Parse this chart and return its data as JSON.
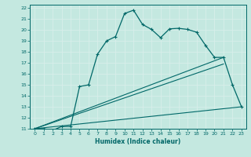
{
  "xlabel": "Humidex (Indice chaleur)",
  "bg_color": "#c4e8e0",
  "grid_color": "#d8eeea",
  "line_color": "#006868",
  "xlim": [
    -0.5,
    23.5
  ],
  "ylim": [
    11,
    22.3
  ],
  "xtick_labels": [
    "0",
    "1",
    "2",
    "3",
    "4",
    "5",
    "6",
    "7",
    "8",
    "9",
    "10",
    "11",
    "12",
    "13",
    "14",
    "15",
    "16",
    "17",
    "18",
    "19",
    "20",
    "21",
    "22",
    "23"
  ],
  "ytick_labels": [
    "11",
    "12",
    "13",
    "14",
    "15",
    "16",
    "17",
    "18",
    "19",
    "20",
    "21",
    "22"
  ],
  "xticks": [
    0,
    1,
    2,
    3,
    4,
    5,
    6,
    7,
    8,
    9,
    10,
    11,
    12,
    13,
    14,
    15,
    16,
    17,
    18,
    19,
    20,
    21,
    22,
    23
  ],
  "yticks": [
    11,
    12,
    13,
    14,
    15,
    16,
    17,
    18,
    19,
    20,
    21,
    22
  ],
  "main_line": {
    "x": [
      0,
      1,
      2,
      3,
      4,
      5,
      6,
      7,
      8,
      9,
      10,
      11,
      12,
      13,
      14,
      15,
      16,
      17,
      18,
      19,
      20,
      21,
      22,
      23
    ],
    "y": [
      11,
      11,
      10.85,
      11.2,
      11.2,
      14.85,
      15.0,
      17.8,
      19.0,
      19.4,
      21.5,
      21.8,
      20.5,
      20.05,
      19.3,
      20.1,
      20.15,
      20.05,
      19.8,
      18.6,
      17.5,
      17.5,
      15.0,
      13.0
    ]
  },
  "fan_lines": [
    {
      "x": [
        0,
        21
      ],
      "y": [
        11,
        17.5
      ]
    },
    {
      "x": [
        0,
        21
      ],
      "y": [
        11,
        16.9
      ]
    },
    {
      "x": [
        0,
        23
      ],
      "y": [
        11,
        13.0
      ]
    }
  ]
}
